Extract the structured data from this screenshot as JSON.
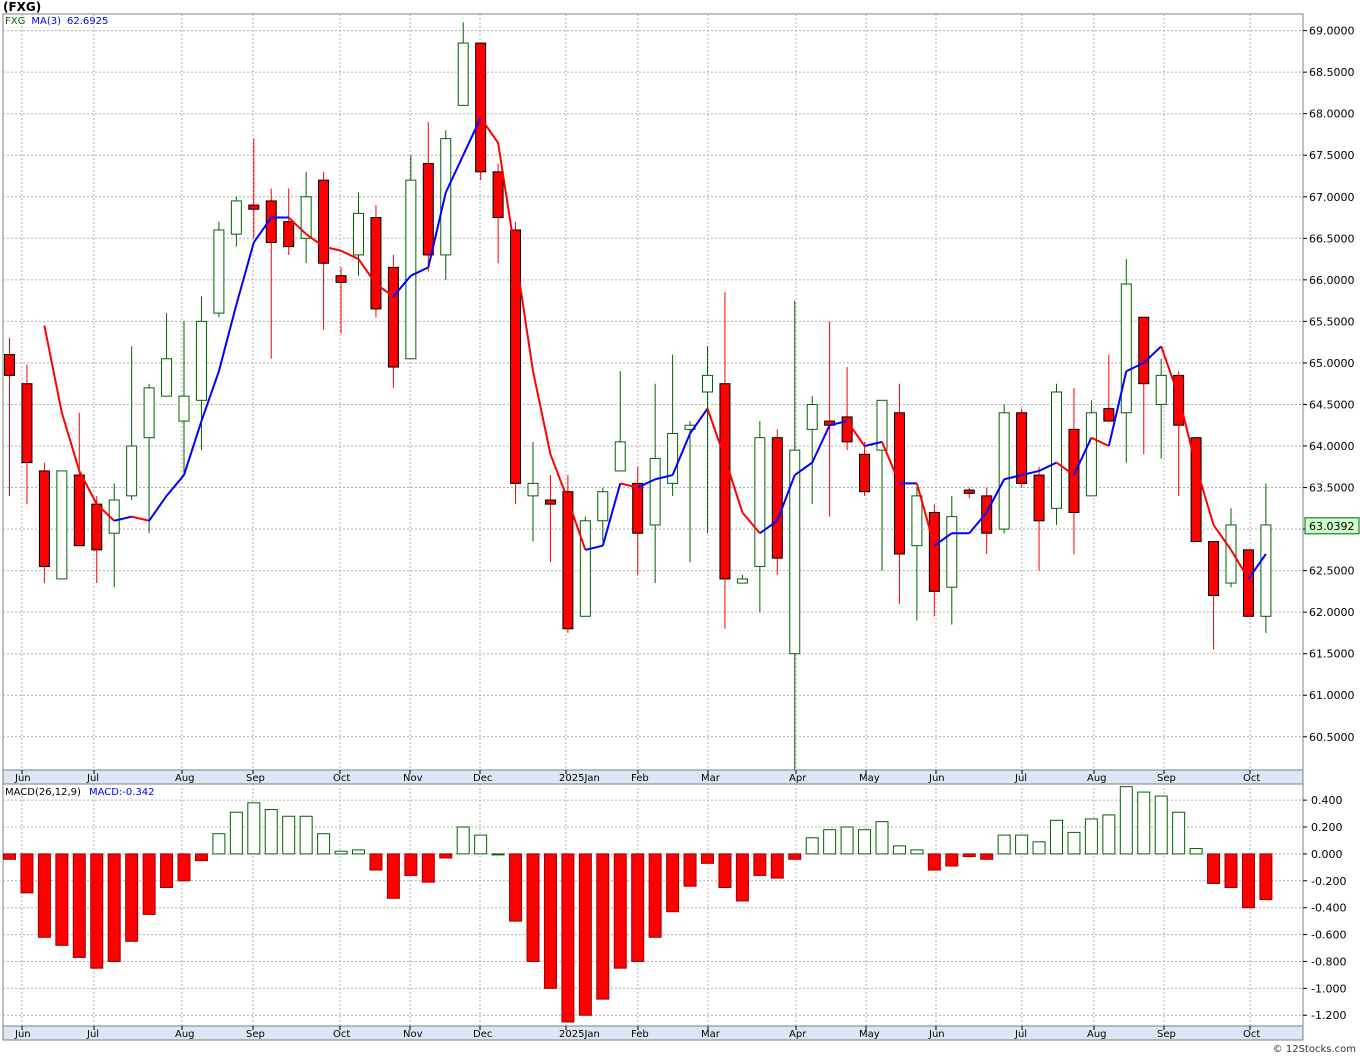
{
  "title": "(FXG)",
  "watermark": "© 12Stocks.com",
  "colors": {
    "up": "#006400",
    "down": "#ff0000",
    "ma_up": "#0000ff",
    "ma_down": "#ff0000",
    "grid": "#b0b0b0",
    "price_tag_bg": "#ccffcc"
  },
  "chart_data": [
    {
      "type": "candlestick",
      "legend": {
        "symbol": "FXG",
        "ma_label": "MA(3)",
        "ma_value": "62.6925"
      },
      "last_price": "63.0392",
      "ylim": [
        60.1,
        69.2
      ],
      "y_ticks": [
        "69.0000",
        "68.5000",
        "68.0000",
        "67.5000",
        "67.0000",
        "66.5000",
        "66.0000",
        "65.5000",
        "65.0000",
        "64.5000",
        "64.0000",
        "63.5000",
        "63.0000",
        "62.5000",
        "62.0000",
        "61.5000",
        "61.0000",
        "60.5000"
      ],
      "x_ticks": [
        "Jun",
        "Jul",
        "Aug",
        "Sep",
        "Oct",
        "Nov",
        "Dec",
        "2025Jan",
        "Feb",
        "Mar",
        "Apr",
        "May",
        "Jun",
        "Jul",
        "Aug",
        "Sep",
        "Oct"
      ],
      "candles": [
        {
          "o": 65.1,
          "h": 65.3,
          "l": 63.4,
          "c": 64.85
        },
        {
          "o": 64.75,
          "h": 64.98,
          "l": 63.3,
          "c": 63.8
        },
        {
          "o": 63.7,
          "h": 63.8,
          "l": 62.35,
          "c": 62.55
        },
        {
          "o": 62.4,
          "h": 63.7,
          "l": 62.4,
          "c": 63.7
        },
        {
          "o": 63.65,
          "h": 64.4,
          "l": 62.8,
          "c": 62.8
        },
        {
          "o": 63.3,
          "h": 63.4,
          "l": 62.35,
          "c": 62.75
        },
        {
          "o": 62.95,
          "h": 63.55,
          "l": 62.3,
          "c": 63.35
        },
        {
          "o": 63.4,
          "h": 65.2,
          "l": 63.35,
          "c": 64.0
        },
        {
          "o": 64.1,
          "h": 64.75,
          "l": 62.95,
          "c": 64.7
        },
        {
          "o": 64.6,
          "h": 65.6,
          "l": 64.6,
          "c": 65.05
        },
        {
          "o": 64.3,
          "h": 65.5,
          "l": 63.65,
          "c": 64.6
        },
        {
          "o": 64.55,
          "h": 65.8,
          "l": 63.95,
          "c": 65.5
        },
        {
          "o": 65.6,
          "h": 66.7,
          "l": 65.55,
          "c": 66.6
        },
        {
          "o": 66.55,
          "h": 67.0,
          "l": 66.4,
          "c": 66.95
        },
        {
          "o": 66.9,
          "h": 67.7,
          "l": 66.5,
          "c": 66.85
        },
        {
          "o": 66.95,
          "h": 67.1,
          "l": 65.05,
          "c": 66.45
        },
        {
          "o": 66.7,
          "h": 67.1,
          "l": 66.3,
          "c": 66.4
        },
        {
          "o": 66.5,
          "h": 67.3,
          "l": 66.2,
          "c": 67.0
        },
        {
          "o": 67.2,
          "h": 67.3,
          "l": 65.4,
          "c": 66.2
        },
        {
          "o": 66.05,
          "h": 66.15,
          "l": 65.35,
          "c": 65.97
        },
        {
          "o": 66.3,
          "h": 67.05,
          "l": 66.05,
          "c": 66.8
        },
        {
          "o": 66.75,
          "h": 66.9,
          "l": 65.55,
          "c": 65.65
        },
        {
          "o": 66.15,
          "h": 66.3,
          "l": 64.7,
          "c": 64.95
        },
        {
          "o": 65.05,
          "h": 67.5,
          "l": 65.05,
          "c": 67.2
        },
        {
          "o": 67.4,
          "h": 67.9,
          "l": 66.1,
          "c": 66.3
        },
        {
          "o": 66.3,
          "h": 67.8,
          "l": 66.0,
          "c": 67.7
        },
        {
          "o": 68.1,
          "h": 69.1,
          "l": 68.1,
          "c": 68.85
        },
        {
          "o": 68.85,
          "h": 68.85,
          "l": 67.2,
          "c": 67.3
        },
        {
          "o": 67.3,
          "h": 67.4,
          "l": 66.2,
          "c": 66.75
        },
        {
          "o": 66.6,
          "h": 66.7,
          "l": 63.3,
          "c": 63.55
        },
        {
          "o": 63.4,
          "h": 64.05,
          "l": 62.85,
          "c": 63.55
        },
        {
          "o": 63.35,
          "h": 63.65,
          "l": 62.6,
          "c": 63.3
        },
        {
          "o": 63.45,
          "h": 63.65,
          "l": 61.75,
          "c": 61.8
        },
        {
          "o": 61.95,
          "h": 63.15,
          "l": 61.95,
          "c": 63.1
        },
        {
          "o": 63.1,
          "h": 63.5,
          "l": 62.85,
          "c": 63.45
        },
        {
          "o": 63.7,
          "h": 64.9,
          "l": 63.7,
          "c": 64.05
        },
        {
          "o": 63.55,
          "h": 63.75,
          "l": 62.45,
          "c": 62.95
        },
        {
          "o": 63.05,
          "h": 64.75,
          "l": 62.35,
          "c": 63.85
        },
        {
          "o": 63.55,
          "h": 65.1,
          "l": 63.4,
          "c": 64.15
        },
        {
          "o": 64.2,
          "h": 64.3,
          "l": 62.6,
          "c": 64.25
        },
        {
          "o": 64.65,
          "h": 65.2,
          "l": 62.95,
          "c": 64.85
        },
        {
          "o": 64.75,
          "h": 65.85,
          "l": 61.8,
          "c": 62.4
        },
        {
          "o": 62.35,
          "h": 62.45,
          "l": 62.35,
          "c": 62.4
        },
        {
          "o": 62.55,
          "h": 64.3,
          "l": 62.0,
          "c": 64.1
        },
        {
          "o": 64.1,
          "h": 64.2,
          "l": 62.45,
          "c": 62.65
        },
        {
          "o": 61.5,
          "h": 65.75,
          "l": 60.05,
          "c": 63.95
        },
        {
          "o": 64.2,
          "h": 64.6,
          "l": 63.3,
          "c": 64.5
        },
        {
          "o": 64.3,
          "h": 65.5,
          "l": 63.15,
          "c": 64.25
        },
        {
          "o": 64.35,
          "h": 64.95,
          "l": 63.95,
          "c": 64.05
        },
        {
          "o": 63.9,
          "h": 64.05,
          "l": 63.4,
          "c": 63.45
        },
        {
          "o": 63.95,
          "h": 64.55,
          "l": 62.5,
          "c": 64.55
        },
        {
          "o": 64.4,
          "h": 64.75,
          "l": 62.1,
          "c": 62.7
        },
        {
          "o": 62.8,
          "h": 63.5,
          "l": 61.9,
          "c": 63.4
        },
        {
          "o": 63.2,
          "h": 63.3,
          "l": 61.95,
          "c": 62.25
        },
        {
          "o": 62.3,
          "h": 63.4,
          "l": 61.85,
          "c": 63.15
        },
        {
          "o": 63.47,
          "h": 63.5,
          "l": 63.37,
          "c": 63.43
        },
        {
          "o": 63.4,
          "h": 63.5,
          "l": 62.7,
          "c": 62.95
        },
        {
          "o": 63.0,
          "h": 64.5,
          "l": 62.95,
          "c": 64.4
        },
        {
          "o": 64.4,
          "h": 64.45,
          "l": 63.5,
          "c": 63.55
        },
        {
          "o": 63.65,
          "h": 63.75,
          "l": 62.5,
          "c": 63.1
        },
        {
          "o": 63.25,
          "h": 64.75,
          "l": 63.05,
          "c": 64.65
        },
        {
          "o": 64.2,
          "h": 64.7,
          "l": 62.7,
          "c": 63.2
        },
        {
          "o": 63.4,
          "h": 64.55,
          "l": 63.4,
          "c": 64.4
        },
        {
          "o": 64.45,
          "h": 65.1,
          "l": 64.3,
          "c": 64.3
        },
        {
          "o": 64.4,
          "h": 66.25,
          "l": 63.8,
          "c": 65.95
        },
        {
          "o": 65.55,
          "h": 65.55,
          "l": 63.9,
          "c": 64.75
        },
        {
          "o": 64.5,
          "h": 65.05,
          "l": 63.85,
          "c": 64.85
        },
        {
          "o": 64.85,
          "h": 64.9,
          "l": 63.4,
          "c": 64.25
        },
        {
          "o": 64.1,
          "h": 64.1,
          "l": 62.85,
          "c": 62.85
        },
        {
          "o": 62.85,
          "h": 62.85,
          "l": 61.55,
          "c": 62.2
        },
        {
          "o": 62.35,
          "h": 63.25,
          "l": 62.3,
          "c": 63.05
        },
        {
          "o": 62.75,
          "h": 62.75,
          "l": 61.95,
          "c": 61.95
        },
        {
          "o": 61.95,
          "h": 63.55,
          "l": 61.75,
          "c": 63.05
        }
      ],
      "ma": [
        null,
        null,
        65.45,
        64.4,
        63.7,
        63.3,
        63.1,
        63.15,
        63.1,
        63.4,
        63.65,
        64.3,
        64.9,
        65.7,
        66.45,
        66.75,
        66.75,
        66.55,
        66.4,
        66.35,
        66.25,
        65.95,
        65.8,
        66.05,
        66.15,
        67.05,
        67.5,
        67.95,
        67.65,
        66.3,
        64.9,
        63.9,
        63.35,
        62.75,
        62.8,
        63.55,
        63.5,
        63.6,
        63.65,
        64.15,
        64.45,
        63.85,
        63.2,
        62.95,
        63.1,
        63.65,
        63.8,
        64.25,
        64.3,
        64.0,
        64.05,
        63.55,
        63.55,
        62.8,
        62.95,
        62.95,
        63.2,
        63.6,
        63.65,
        63.7,
        63.8,
        63.65,
        64.1,
        64.0,
        64.9,
        65.0,
        65.2,
        64.6,
        63.75,
        63.05,
        62.75,
        62.4,
        62.7
      ]
    },
    {
      "type": "bar",
      "legend": {
        "label": "MACD(26,12,9)",
        "value_label": "MACD:-0.342"
      },
      "ylim": [
        -1.28,
        0.52
      ],
      "y_ticks": [
        "0.400",
        "0.200",
        "0.000",
        "-0.200",
        "-0.400",
        "-0.600",
        "-0.800",
        "-1.000",
        "-1.200"
      ],
      "x_ticks": [
        "Jun",
        "Jul",
        "Aug",
        "Sep",
        "Oct",
        "Nov",
        "Dec",
        "2025Jan",
        "Feb",
        "Mar",
        "Apr",
        "May",
        "Jun",
        "Jul",
        "Aug",
        "Sep",
        "Oct"
      ],
      "values": [
        -0.04,
        -0.29,
        -0.62,
        -0.68,
        -0.77,
        -0.85,
        -0.8,
        -0.65,
        -0.45,
        -0.25,
        -0.2,
        -0.05,
        0.15,
        0.31,
        0.38,
        0.33,
        0.28,
        0.28,
        0.15,
        0.02,
        0.03,
        -0.12,
        -0.33,
        -0.16,
        -0.21,
        -0.03,
        0.2,
        0.14,
        0.0,
        -0.5,
        -0.8,
        -1.0,
        -1.25,
        -1.2,
        -1.08,
        -0.85,
        -0.8,
        -0.62,
        -0.43,
        -0.24,
        -0.07,
        -0.25,
        -0.35,
        -0.16,
        -0.18,
        -0.04,
        0.12,
        0.18,
        0.2,
        0.18,
        0.24,
        0.06,
        0.03,
        -0.12,
        -0.09,
        -0.02,
        -0.04,
        0.14,
        0.14,
        0.09,
        0.25,
        0.16,
        0.26,
        0.29,
        0.5,
        0.46,
        0.43,
        0.31,
        0.04,
        -0.22,
        -0.25,
        -0.4,
        -0.34
      ]
    }
  ]
}
